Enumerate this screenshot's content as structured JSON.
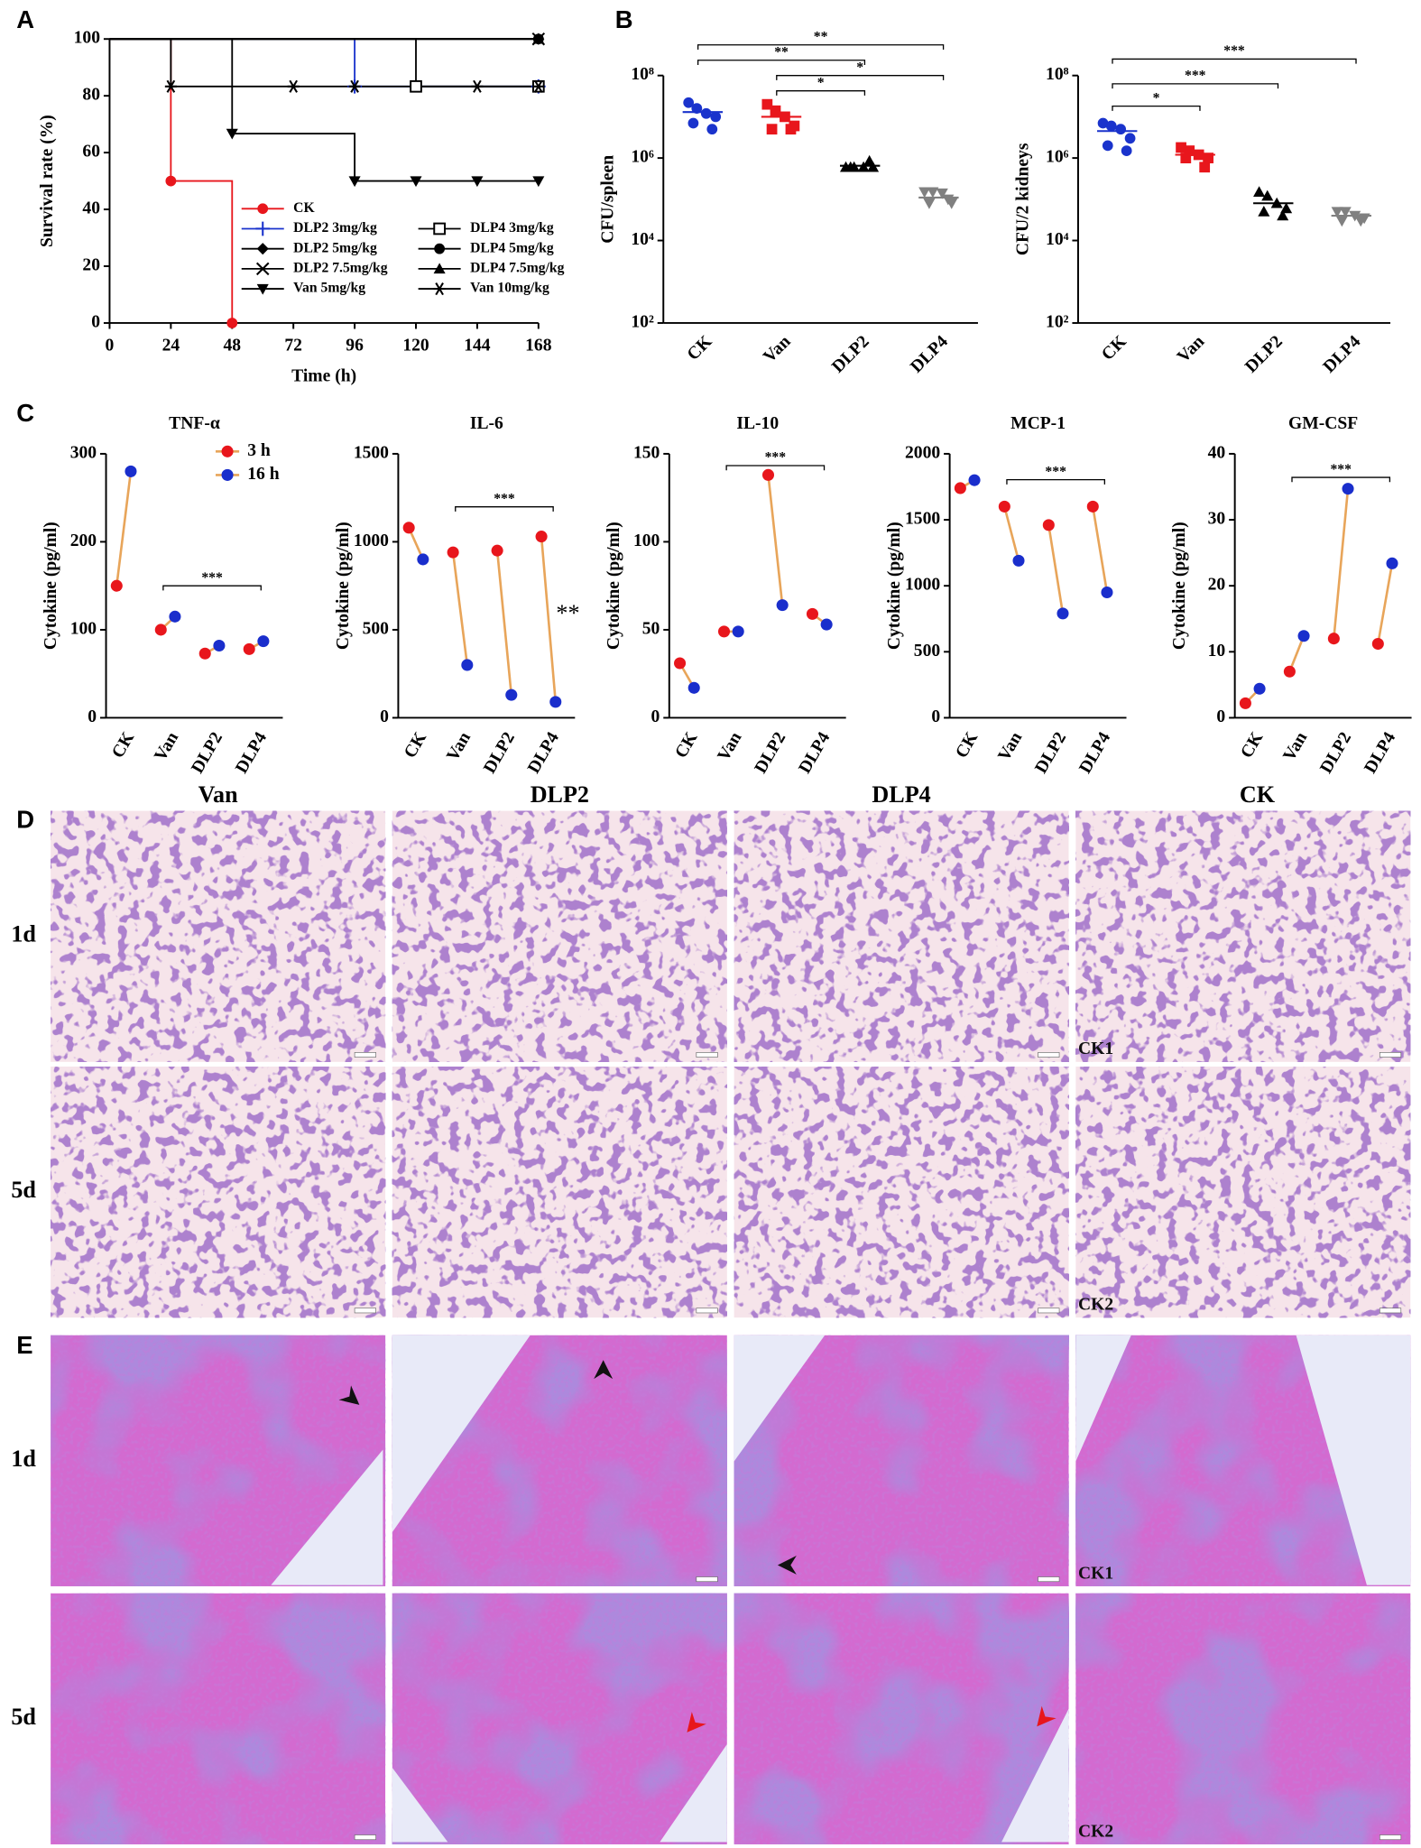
{
  "panel_labels": [
    "A",
    "B",
    "C",
    "D",
    "E"
  ],
  "chart_data": [
    {
      "type": "line",
      "xlabel": "Time (h)",
      "ylabel": "Survival rate (%)",
      "step": true,
      "xlim": [
        0,
        168
      ],
      "ylim": [
        0,
        100
      ],
      "xticks": [
        0,
        24,
        48,
        72,
        96,
        120,
        144,
        168
      ],
      "yticks": [
        0,
        20,
        40,
        60,
        80,
        100
      ],
      "series": [
        {
          "name": "CK",
          "color": "#e8161c",
          "marker": "circle",
          "x": [
            0,
            24,
            48
          ],
          "values": [
            100,
            50,
            0
          ]
        },
        {
          "name": "DLP2 3mg/kg",
          "color": "#1a33cc",
          "marker": "plus",
          "x": [
            0,
            96,
            168
          ],
          "values": [
            100,
            83.3,
            83.3
          ]
        },
        {
          "name": "DLP2 5mg/kg",
          "color": "#000000",
          "marker": "diamond",
          "x": [
            0,
            168
          ],
          "values": [
            100,
            100
          ]
        },
        {
          "name": "DLP2 7.5mg/kg",
          "color": "#000000",
          "marker": "x",
          "x": [
            0,
            168
          ],
          "values": [
            100,
            100
          ]
        },
        {
          "name": "Van 5mg/kg",
          "color": "#000000",
          "marker": "triangle-down",
          "x": [
            0,
            48,
            96,
            120,
            144,
            168
          ],
          "values": [
            100,
            66.7,
            50,
            50,
            50,
            50
          ]
        },
        {
          "name": "DLP4 3mg/kg",
          "color": "#000000",
          "marker": "open-square",
          "x": [
            0,
            120,
            168
          ],
          "values": [
            100,
            83.3,
            83.3
          ]
        },
        {
          "name": "DLP4 5mg/kg",
          "color": "#000000",
          "marker": "circle",
          "x": [
            0,
            168
          ],
          "values": [
            100,
            100
          ]
        },
        {
          "name": "DLP4 7.5mg/kg",
          "color": "#000000",
          "marker": "triangle",
          "x": [
            0,
            168
          ],
          "values": [
            100,
            100
          ]
        },
        {
          "name": "Van 10mg/kg",
          "color": "#000000",
          "marker": "asterisk",
          "x": [
            0,
            24,
            72,
            96,
            144,
            168
          ],
          "values": [
            100,
            83.3,
            83.3,
            83.3,
            83.3,
            83.3
          ]
        }
      ]
    },
    {
      "type": "dot",
      "ylabel": "CFU/spleen",
      "log": true,
      "ylim": [
        100,
        100000000
      ],
      "yticks": [
        {
          "value": 100,
          "label": "10²"
        },
        {
          "value": 10000,
          "label": "10⁴"
        },
        {
          "value": 1000000,
          "label": "10⁶"
        },
        {
          "value": 100000000,
          "label": "10⁸"
        }
      ],
      "categories": [
        "CK",
        "Van",
        "DLP2",
        "DLP4"
      ],
      "colors": [
        "#1a33cc",
        "#e8161c",
        "#000000",
        "#808080"
      ],
      "markers": [
        "circle",
        "square",
        "triangle",
        "triangle-down"
      ],
      "points": [
        [
          22000000,
          16000000,
          12000000,
          10000000,
          7000000,
          5000000
        ],
        [
          20000000,
          14000000,
          10000000,
          6000000,
          5000000,
          5000000
        ],
        [
          600000,
          600000,
          600000,
          600000,
          600000,
          850000
        ],
        [
          150000,
          150000,
          140000,
          80000,
          80000,
          100000
        ]
      ],
      "means": [
        13000000,
        10000000,
        650000,
        110000
      ],
      "brackets": [
        {
          "from": 0,
          "to": 3,
          "label": "**"
        },
        {
          "from": 0,
          "to": 2,
          "label": "**"
        },
        {
          "from": 1,
          "to": 3,
          "label": "*"
        },
        {
          "from": 1,
          "to": 2,
          "label": "*"
        }
      ]
    },
    {
      "type": "dot",
      "ylabel": "CFU/2 kidneys",
      "log": true,
      "ylim": [
        100,
        100000000
      ],
      "yticks": [
        {
          "value": 100,
          "label": "10²"
        },
        {
          "value": 10000,
          "label": "10⁴"
        },
        {
          "value": 1000000,
          "label": "10⁶"
        },
        {
          "value": 100000000,
          "label": "10⁸"
        }
      ],
      "categories": [
        "CK",
        "Van",
        "DLP2",
        "DLP4"
      ],
      "colors": [
        "#1a33cc",
        "#e8161c",
        "#000000",
        "#808080"
      ],
      "markers": [
        "circle",
        "square",
        "triangle",
        "triangle-down"
      ],
      "points": [
        [
          7000000,
          6000000,
          5000000,
          3000000,
          2000000,
          1500000
        ],
        [
          1800000,
          1500000,
          1200000,
          1000000,
          1000000,
          600000
        ],
        [
          150000,
          120000,
          80000,
          60000,
          50000,
          40000
        ],
        [
          50000,
          50000,
          40000,
          35000,
          30000,
          30000
        ]
      ],
      "means": [
        4500000,
        1200000,
        80000,
        40000
      ],
      "brackets": [
        {
          "from": 0,
          "to": 3,
          "label": "***"
        },
        {
          "from": 0,
          "to": 2,
          "label": "***"
        },
        {
          "from": 0,
          "to": 1,
          "label": "*"
        }
      ]
    },
    {
      "type": "paired",
      "title": "TNF-α",
      "ylabel": "Cytokine (pg/ml)",
      "ylim": [
        0,
        300
      ],
      "yticks": [
        0,
        100,
        200,
        300
      ],
      "categories": [
        "CK",
        "Van",
        "DLP2",
        "DLP4"
      ],
      "line_color": "#e8a55a",
      "series": [
        {
          "name": "3 h",
          "color": "#e8161c",
          "values": [
            150,
            100,
            73,
            78
          ]
        },
        {
          "name": "16 h",
          "color": "#1a2ecc",
          "values": [
            280,
            115,
            82,
            87
          ]
        }
      ],
      "brackets": [
        {
          "from": 1,
          "to": 3,
          "label": "***"
        }
      ]
    },
    {
      "type": "paired",
      "title": "IL-6",
      "ylabel": "Cytokine (pg/ml)",
      "ylim": [
        0,
        1500
      ],
      "yticks": [
        0,
        500,
        1000,
        1500
      ],
      "categories": [
        "CK",
        "Van",
        "DLP2",
        "DLP4"
      ],
      "line_color": "#e8a55a",
      "series": [
        {
          "color": "#e8161c",
          "values": [
            1080,
            940,
            950,
            1030
          ]
        },
        {
          "color": "#1a2ecc",
          "values": [
            900,
            300,
            130,
            90
          ]
        }
      ],
      "brackets": [
        {
          "from": 1,
          "to": 3,
          "label": "***"
        }
      ],
      "annotation": "**"
    },
    {
      "type": "paired",
      "title": "IL-10",
      "ylabel": "Cytokine (pg/ml)",
      "ylim": [
        0,
        150
      ],
      "yticks": [
        0,
        50,
        100,
        150
      ],
      "categories": [
        "CK",
        "Van",
        "DLP2",
        "DLP4"
      ],
      "line_color": "#e8a55a",
      "series": [
        {
          "color": "#e8161c",
          "values": [
            31,
            49,
            138,
            59
          ]
        },
        {
          "color": "#1a2ecc",
          "values": [
            17,
            49,
            64,
            53
          ]
        }
      ],
      "brackets": [
        {
          "from": 1,
          "to": 3,
          "label": "***"
        }
      ]
    },
    {
      "type": "paired",
      "title": "MCP-1",
      "ylabel": "Cytokine (pg/ml)",
      "ylim": [
        0,
        2000
      ],
      "yticks": [
        0,
        500,
        1000,
        1500,
        2000
      ],
      "categories": [
        "CK",
        "Van",
        "DLP2",
        "DLP4"
      ],
      "line_color": "#e8a55a",
      "series": [
        {
          "color": "#e8161c",
          "values": [
            1740,
            1600,
            1460,
            1600
          ]
        },
        {
          "color": "#1a2ecc",
          "values": [
            1800,
            1190,
            790,
            950
          ]
        }
      ],
      "brackets": [
        {
          "from": 1,
          "to": 3,
          "label": "***"
        }
      ]
    },
    {
      "type": "paired",
      "title": "GM-CSF",
      "ylabel": "Cytokine (pg/ml)",
      "ylim": [
        0,
        40
      ],
      "yticks": [
        0,
        10,
        20,
        30,
        40
      ],
      "categories": [
        "CK",
        "Van",
        "DLP2",
        "DLP4"
      ],
      "line_color": "#e8a55a",
      "series": [
        {
          "color": "#e8161c",
          "values": [
            2.2,
            7,
            12,
            11.2
          ]
        },
        {
          "color": "#1a2ecc",
          "values": [
            4.4,
            12.4,
            34.7,
            23.4
          ]
        }
      ],
      "brackets": [
        {
          "from": 1,
          "to": 3,
          "label": "***"
        }
      ]
    }
  ],
  "histology": {
    "columns": [
      "Van",
      "DLP2",
      "DLP4",
      "CK"
    ],
    "rows": [
      "1d",
      "5d"
    ],
    "controls": [
      "CK1",
      "CK2"
    ]
  }
}
